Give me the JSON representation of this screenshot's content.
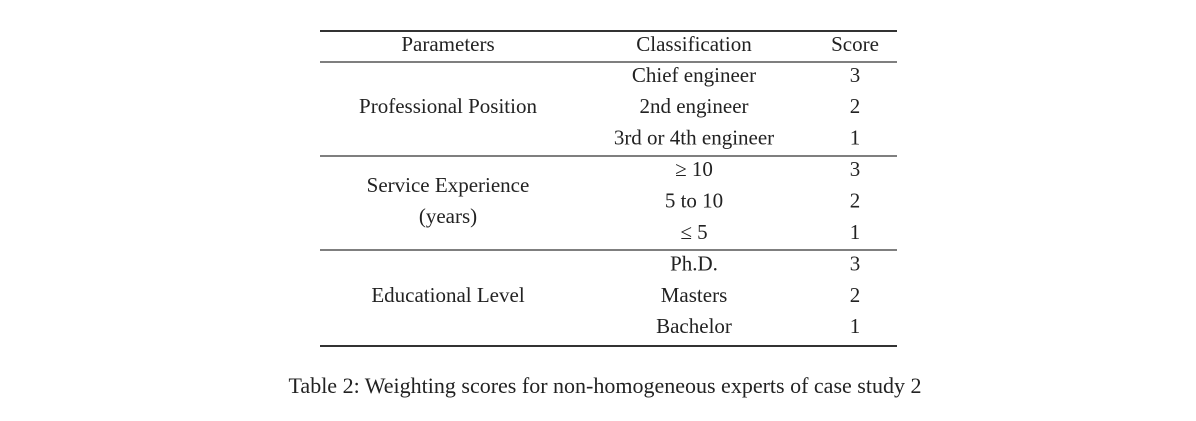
{
  "table": {
    "header": [
      "Parameters",
      "Classification",
      "Score"
    ],
    "groups": [
      {
        "parameter_lines": [
          "Professional Position"
        ],
        "rows": [
          [
            "Chief engineer",
            3
          ],
          [
            "2nd engineer",
            2
          ],
          [
            "3rd or 4th engineer",
            1
          ]
        ]
      },
      {
        "parameter_lines": [
          "Service Experience",
          "(years)"
        ],
        "rows": [
          [
            "≥ 10",
            3
          ],
          [
            "5 to 10",
            2
          ],
          [
            "≤ 5",
            1
          ]
        ]
      },
      {
        "parameter_lines": [
          "Educational Level"
        ],
        "rows": [
          [
            "Ph.D.",
            3
          ],
          [
            "Masters",
            2
          ],
          [
            "Bachelor",
            1
          ]
        ]
      }
    ]
  },
  "caption": "Table 2: Weighting scores for non-homogeneous experts of case study 2"
}
